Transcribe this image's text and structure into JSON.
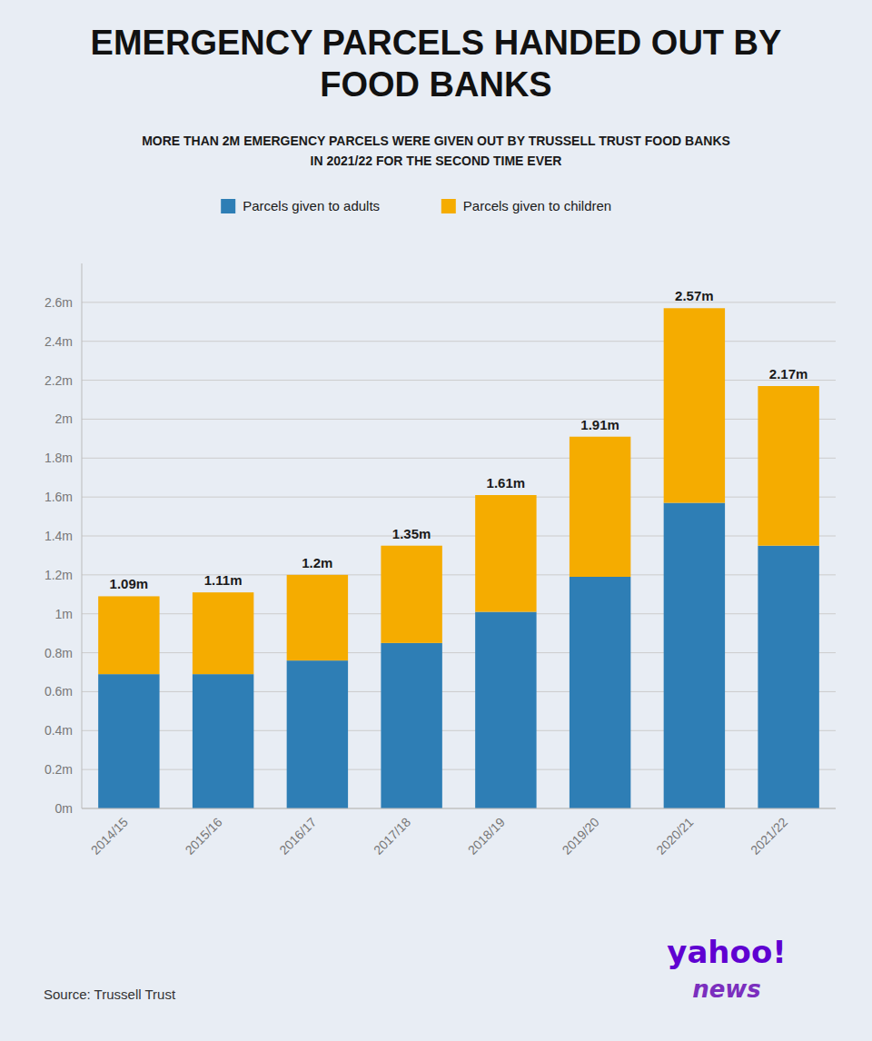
{
  "chart_data": {
    "type": "bar",
    "stacked": true,
    "title": "EMERGENCY PARCELS HANDED OUT BY\nFOOD BANKS",
    "subtitle": "MORE THAN 2M EMERGENCY PARCELS WERE GIVEN OUT BY TRUSSELL TRUST FOOD BANKS\nIN 2021/22 FOR THE SECOND TIME EVER",
    "categories": [
      "2014/15",
      "2015/16",
      "2016/17",
      "2017/18",
      "2018/19",
      "2019/20",
      "2020/21",
      "2021/22"
    ],
    "series": [
      {
        "name": "Parcels given to adults",
        "color": "#2E7EB5",
        "values": [
          0.69,
          0.69,
          0.76,
          0.85,
          1.01,
          1.19,
          1.57,
          1.35
        ]
      },
      {
        "name": "Parcels given to children",
        "color": "#F5AC00",
        "values": [
          0.4,
          0.42,
          0.44,
          0.5,
          0.6,
          0.72,
          1.0,
          0.82
        ]
      }
    ],
    "totals": [
      1.09,
      1.11,
      1.2,
      1.35,
      1.61,
      1.91,
      2.57,
      2.17
    ],
    "total_labels": [
      "1.09m",
      "1.11m",
      "1.2m",
      "1.35m",
      "1.61m",
      "1.91m",
      "2.57m",
      "2.17m"
    ],
    "ylim": [
      0,
      2.8
    ],
    "yticks": [
      {
        "value": 0,
        "label": "0m"
      },
      {
        "value": 0.2,
        "label": "0.2m"
      },
      {
        "value": 0.4,
        "label": "0.4m"
      },
      {
        "value": 0.6,
        "label": "0.6m"
      },
      {
        "value": 0.8,
        "label": "0.8m"
      },
      {
        "value": 1.0,
        "label": "1m"
      },
      {
        "value": 1.2,
        "label": "1.2m"
      },
      {
        "value": 1.4,
        "label": "1.4m"
      },
      {
        "value": 1.6,
        "label": "1.6m"
      },
      {
        "value": 1.8,
        "label": "1.8m"
      },
      {
        "value": 2.0,
        "label": "2m"
      },
      {
        "value": 2.2,
        "label": "2.2m"
      },
      {
        "value": 2.4,
        "label": "2.4m"
      },
      {
        "value": 2.6,
        "label": "2.6m"
      }
    ],
    "grid": true,
    "legend": "top",
    "annotations": [
      "Source: Trussell Trust",
      "yahoo!",
      "news"
    ]
  }
}
